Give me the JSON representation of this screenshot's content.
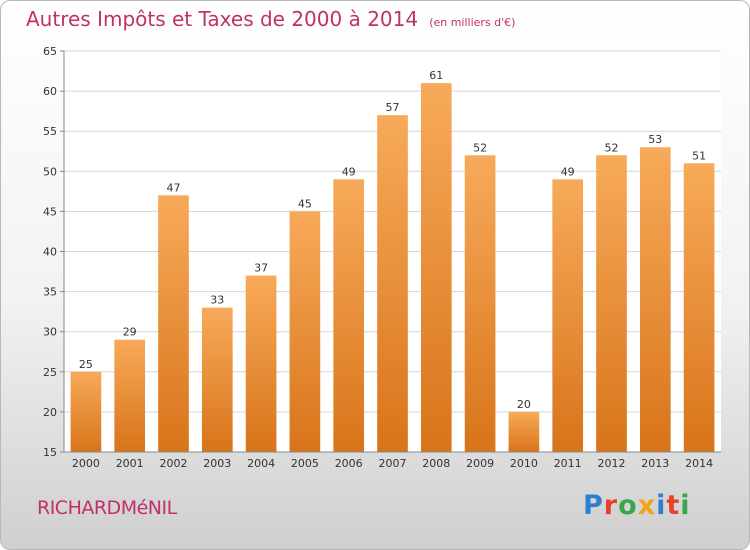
{
  "title": "Autres Impôts et Taxes de 2000 à 2014",
  "subtitle": "(en milliers d'€)",
  "commune": "RICHARDMéNIL",
  "brand": {
    "letters": [
      "P",
      "r",
      "o",
      "x",
      "i",
      "t",
      "i"
    ],
    "colors": [
      "#2f7fd1",
      "#e8412b",
      "#3aa64a",
      "#f3a21a",
      "#2f7fd1",
      "#e8412b",
      "#3aa64a"
    ]
  },
  "colors": {
    "bar_top": "#f7aa5a",
    "bar_bottom": "#d8741a",
    "grid": "#d6d6d6",
    "axis": "#888888"
  },
  "chart_data": {
    "type": "bar",
    "title": "Autres Impôts et Taxes de 2000 à 2014",
    "subtitle": "(en milliers d'€)",
    "categories": [
      "2000",
      "2001",
      "2002",
      "2003",
      "2004",
      "2005",
      "2006",
      "2007",
      "2008",
      "2009",
      "2010",
      "2011",
      "2012",
      "2013",
      "2014"
    ],
    "values": [
      25,
      29,
      47,
      33,
      37,
      45,
      49,
      57,
      61,
      52,
      20,
      49,
      52,
      53,
      51
    ],
    "ylim": [
      15,
      65
    ],
    "yticks": [
      15,
      20,
      25,
      30,
      35,
      40,
      45,
      50,
      55,
      60,
      65
    ],
    "grid": true,
    "xlabel": "",
    "ylabel": ""
  }
}
